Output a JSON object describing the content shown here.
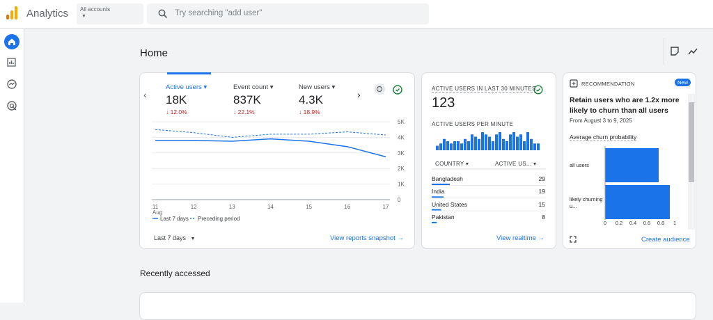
{
  "header": {
    "product": "Analytics",
    "account_label": "All accounts",
    "search_placeholder": "Try searching \"add user\""
  },
  "page_title": "Home",
  "overview": {
    "tabs": [
      {
        "label": "Active users",
        "value": "18K",
        "change": "↓ 12.0%"
      },
      {
        "label": "Event count",
        "value": "837K",
        "change": "↓ 22.1%"
      },
      {
        "label": "New users",
        "value": "4.3K",
        "change": "↓ 18.9%"
      }
    ],
    "chart": {
      "type": "line",
      "x": [
        "11",
        "12",
        "13",
        "14",
        "15",
        "16",
        "17"
      ],
      "x_sublabel": "Aug",
      "ylim": [
        0,
        5000
      ],
      "yticks": [
        0,
        {
          "value": 1000,
          "label": "1K"
        },
        {
          "value": 2000,
          "label": "2K"
        },
        {
          "value": 3000,
          "label": "3K"
        },
        {
          "value": 4000,
          "label": "4K"
        },
        {
          "value": 5000,
          "label": "5K"
        }
      ],
      "grid": true,
      "series": [
        {
          "name": "Last 7 days",
          "color": "#1a73e8",
          "style": "solid",
          "values": [
            3800,
            3800,
            3750,
            3900,
            3750,
            3400,
            2750
          ]
        },
        {
          "name": "Preceding period",
          "color": "#1a73e8",
          "style": "dashed",
          "values": [
            4500,
            4300,
            4000,
            4200,
            4200,
            4350,
            4150
          ]
        }
      ]
    },
    "date_range": "Last 7 days",
    "link": "View reports snapshot"
  },
  "realtime": {
    "title": "ACTIVE USERS IN LAST 30 MINUTES",
    "value": "123",
    "per_minute_label": "ACTIVE USERS PER MINUTE",
    "per_minute": {
      "type": "bar",
      "color": "#1a73e8",
      "values": [
        2,
        3,
        5,
        4,
        3,
        4,
        4,
        3,
        5,
        4,
        7,
        6,
        5,
        8,
        7,
        6,
        4,
        7,
        8,
        5,
        4,
        7,
        8,
        6,
        7,
        4,
        8,
        5,
        3,
        3
      ]
    },
    "columns": [
      "COUNTRY",
      "ACTIVE US..."
    ],
    "rows": [
      {
        "country": "Bangladesh",
        "users": 29
      },
      {
        "country": "India",
        "users": 19
      },
      {
        "country": "United States",
        "users": 15
      },
      {
        "country": "Pakistan",
        "users": 8
      }
    ],
    "link": "View realtime"
  },
  "recommendation": {
    "label": "RECOMMENDATION",
    "badge": "New",
    "title": "Retain users who are 1.2x more likely to churn than all users",
    "date": "From August 3 to 9, 2025",
    "chart": {
      "type": "bar",
      "orientation": "horizontal",
      "title": "Average churn probability",
      "categories": [
        "all users",
        "likely churning u..."
      ],
      "values": [
        0.77,
        0.93
      ],
      "color": "#1a73e8",
      "xlim": [
        0,
        1
      ],
      "xticks": [
        0,
        0.2,
        0.4,
        0.6,
        0.8,
        1
      ]
    },
    "link": "Create audience"
  },
  "recently_accessed": "Recently accessed"
}
